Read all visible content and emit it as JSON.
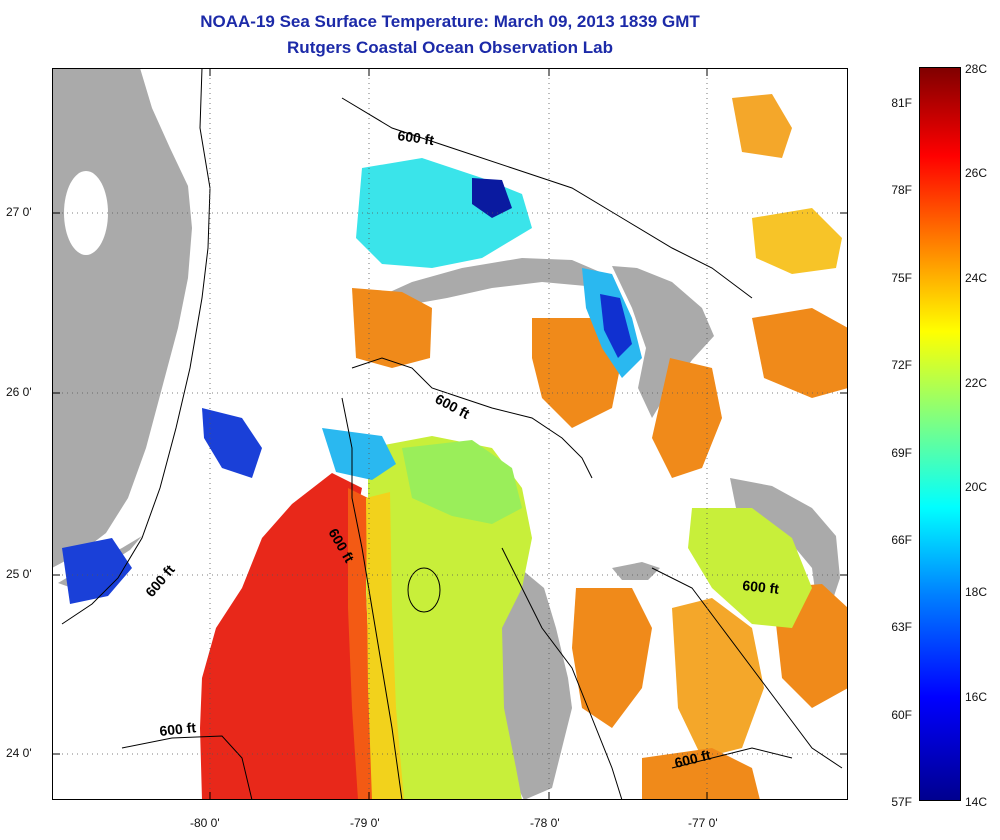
{
  "title_line1": "NOAA-19 Sea Surface Temperature:  March 09, 2013 1839 GMT",
  "title_line2": "Rutgers Coastal Ocean Observation Lab",
  "lat_labels": [
    "27 0'",
    "26 0'",
    "25 0'",
    "24 0'"
  ],
  "lon_labels": [
    "-80 0'",
    "-79 0'",
    "-78 0'",
    "-77 0'"
  ],
  "contour_labels": [
    "600 ft",
    "600 ft",
    "600 ft",
    "600 ft",
    "600 ft",
    "600 ft"
  ],
  "colorbar": {
    "fahrenheit": [
      "81F",
      "78F",
      "75F",
      "72F",
      "69F",
      "66F",
      "63F",
      "60F",
      "57F"
    ],
    "celsius": [
      "28C",
      "26C",
      "24C",
      "22C",
      "20C",
      "18C",
      "16C",
      "14C"
    ],
    "range_c": [
      14,
      28
    ]
  },
  "colors": {
    "title": "#1c2aa8",
    "land": "#aaaaaa",
    "warm_red": "#e8281a",
    "orange": "#f08a1a",
    "yellow_green": "#c8ef3a",
    "green": "#9aee5a",
    "cyan": "#3ae4ea",
    "deep_blue": "#0a1aa0"
  }
}
